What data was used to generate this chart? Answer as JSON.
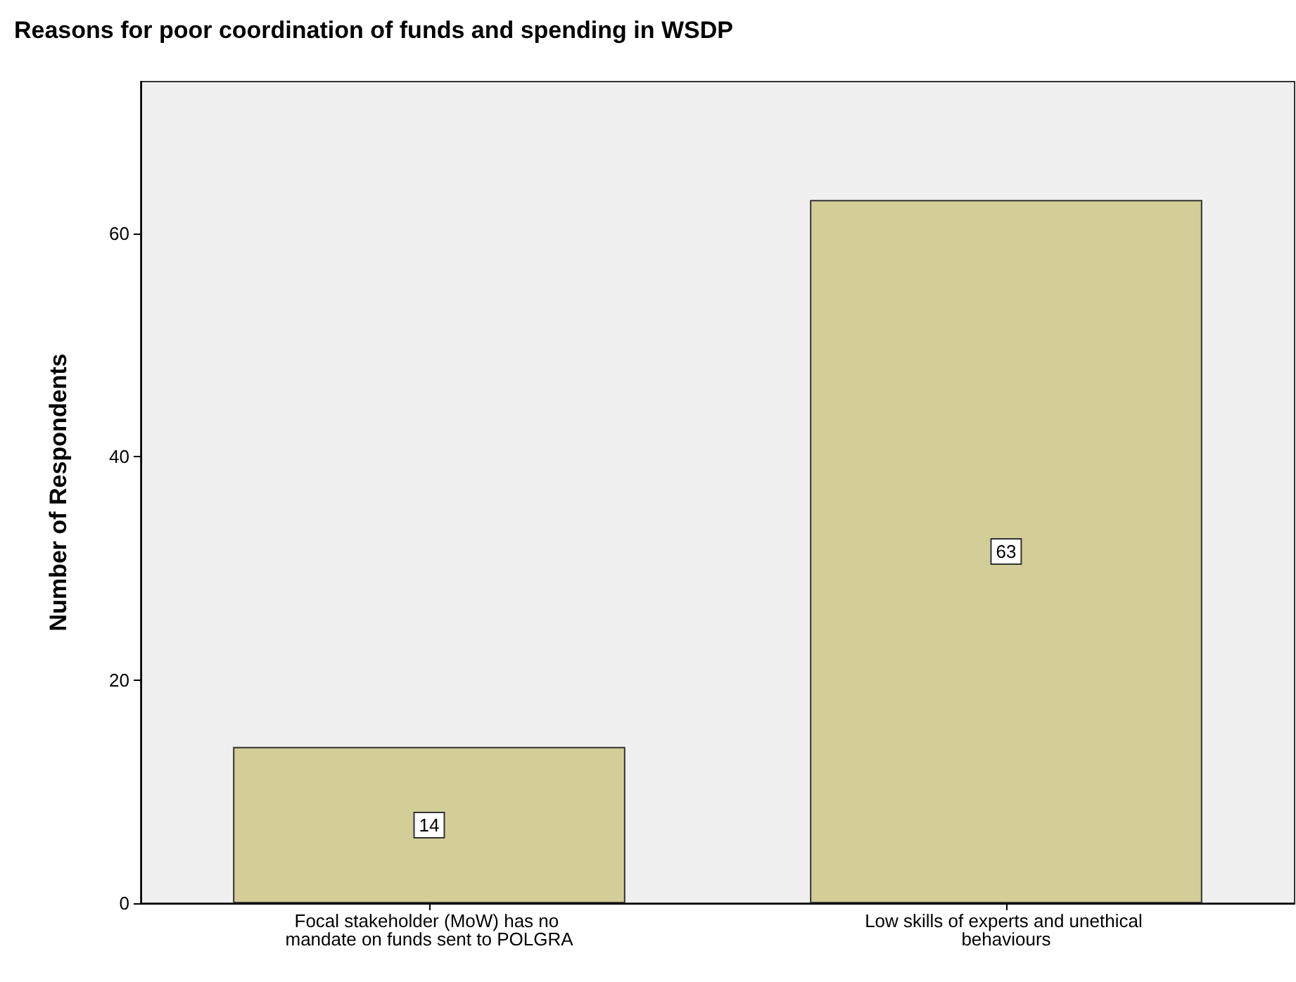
{
  "chart_data": {
    "type": "bar",
    "title": "Reasons for poor coordination of funds and spending in WSDP",
    "ylabel": "Number of Respondents",
    "categories": [
      "Focal stakeholder (MoW) has no mandate on funds sent to POLGRA",
      "Low skills of experts and unethical behaviours"
    ],
    "values": [
      14,
      63
    ],
    "color": "#d3ce97",
    "ylim": [
      0,
      73.6
    ],
    "yticks": [
      0,
      20,
      40,
      60
    ],
    "grid": false,
    "data_labels": true
  }
}
